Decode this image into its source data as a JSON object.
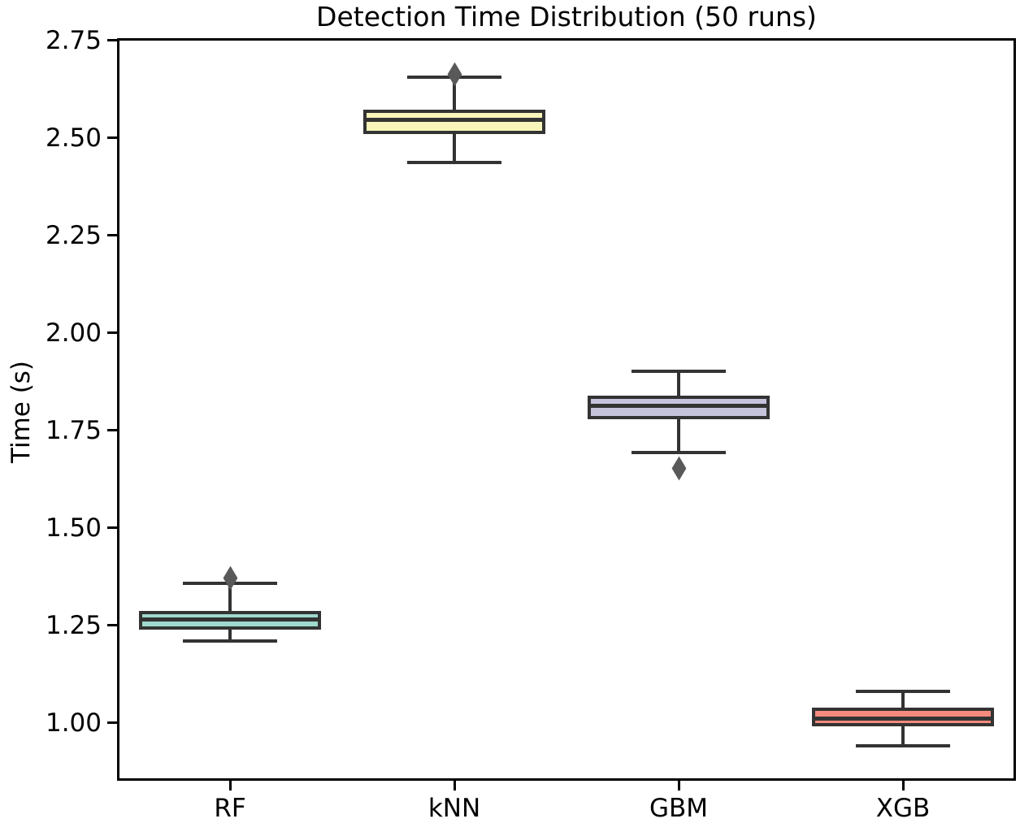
{
  "chart_data": {
    "type": "box",
    "title": "Detection Time Distribution (50 runs)",
    "xlabel": "",
    "ylabel": "Time (s)",
    "categories": [
      "RF",
      "kNN",
      "GBM",
      "XGB"
    ],
    "yticks": [
      1.0,
      1.25,
      1.5,
      1.75,
      2.0,
      2.25,
      2.5,
      2.75
    ],
    "ytick_labels": [
      "1.00",
      "1.25",
      "1.50",
      "1.75",
      "2.00",
      "2.25",
      "2.50",
      "2.75"
    ],
    "ylim": [
      0.854,
      2.754
    ],
    "grid": false,
    "legend": null,
    "series": [
      {
        "name": "RF",
        "fill_color": "#9ed9cd",
        "whisker_low": 1.21,
        "q1": 1.24,
        "median": 1.265,
        "q3": 1.288,
        "whisker_high": 1.358,
        "outliers": [
          1.372
        ]
      },
      {
        "name": "kNN",
        "fill_color": "#f7f5b9",
        "whisker_low": 2.437,
        "q1": 2.511,
        "median": 2.547,
        "q3": 2.573,
        "whisker_high": 2.656,
        "outliers": [
          2.663
        ]
      },
      {
        "name": "GBM",
        "fill_color": "#c5c2db",
        "whisker_low": 1.694,
        "q1": 1.779,
        "median": 1.813,
        "q3": 1.84,
        "whisker_high": 1.902,
        "outliers": [
          1.652
        ]
      },
      {
        "name": "XGB",
        "fill_color": "#f68b7d",
        "whisker_low": 0.942,
        "q1": 0.992,
        "median": 1.012,
        "q3": 1.04,
        "whisker_high": 1.081,
        "outliers": []
      }
    ],
    "line_color": "#333333",
    "outlier_color": "#595959",
    "spine_color": "#000000",
    "text_color": "#000000"
  }
}
